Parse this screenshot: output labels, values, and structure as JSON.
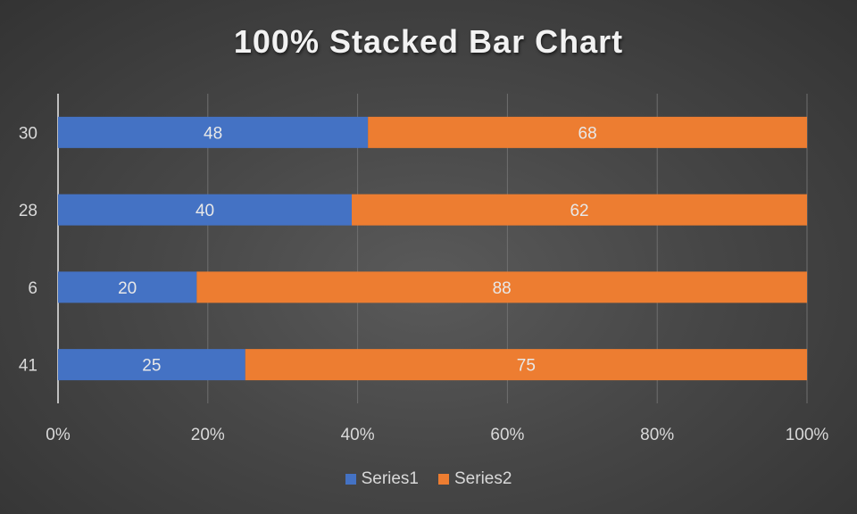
{
  "chart_data": {
    "type": "bar",
    "orientation": "horizontal",
    "stacking": "percent",
    "title": "100% Stacked Bar Chart",
    "categories": [
      "41",
      "6",
      "28",
      "30"
    ],
    "series": [
      {
        "name": "Series1",
        "color": "#4472c4",
        "values": [
          25,
          20,
          40,
          48
        ]
      },
      {
        "name": "Series2",
        "color": "#ed7d31",
        "values": [
          75,
          88,
          62,
          68
        ]
      }
    ],
    "x_ticks": [
      "0%",
      "20%",
      "40%",
      "60%",
      "80%",
      "100%"
    ],
    "xlim": [
      0,
      100
    ],
    "grid": true,
    "legend_position": "bottom"
  }
}
